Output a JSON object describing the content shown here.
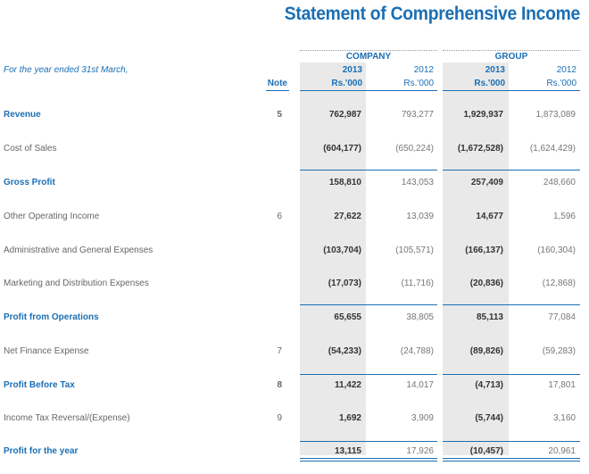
{
  "title": "Statement of Comprehensive Income",
  "period_label": "For the year ended 31st March,",
  "header": {
    "note": "Note",
    "company": "COMPANY",
    "group": "GROUP",
    "year_cur": "2013",
    "year_prev": "2012",
    "unit": "Rs.'000"
  },
  "rows": [
    {
      "label": "Revenue",
      "note": "5",
      "c2013": "762,987",
      "c2012": "793,277",
      "g2013": "1,929,937",
      "g2012": "1,873,089"
    },
    {
      "label": "Cost of Sales",
      "note": "",
      "c2013": "(604,177)",
      "c2012": "(650,224)",
      "g2013": "(1,672,528)",
      "g2012": "(1,624,429)"
    },
    {
      "label": "Gross Profit",
      "note": "",
      "c2013": "158,810",
      "c2012": "143,053",
      "g2013": "257,409",
      "g2012": "248,660"
    },
    {
      "label": "Other Operating Income",
      "note": "6",
      "c2013": "27,622",
      "c2012": "13,039",
      "g2013": "14,677",
      "g2012": "1,596"
    },
    {
      "label": "Administrative and General Expenses",
      "note": "",
      "c2013": "(103,704)",
      "c2012": "(105,571)",
      "g2013": "(166,137)",
      "g2012": "(160,304)"
    },
    {
      "label": "Marketing and Distribution Expenses",
      "note": "",
      "c2013": "(17,073)",
      "c2012": "(11,716)",
      "g2013": "(20,836)",
      "g2012": "(12,868)"
    },
    {
      "label": "Profit from Operations",
      "note": "",
      "c2013": "65,655",
      "c2012": "38,805",
      "g2013": "85,113",
      "g2012": "77,084"
    },
    {
      "label": "Net Finance Expense",
      "note": "7",
      "c2013": "(54,233)",
      "c2012": "(24,788)",
      "g2013": "(89,826)",
      "g2012": "(59,283)"
    },
    {
      "label": "Profit Before Tax",
      "note": "8",
      "c2013": "11,422",
      "c2012": "14,017",
      "g2013": "(4,713)",
      "g2012": "17,801"
    },
    {
      "label": "Income Tax Reversal/(Expense)",
      "note": "9",
      "c2013": "1,692",
      "c2012": "3,909",
      "g2013": "(5,744)",
      "g2012": "3,160"
    },
    {
      "label": "Profit for the year",
      "note": "",
      "c2013": "13,115",
      "c2012": "17,926",
      "g2013": "(10,457)",
      "g2012": "20,961"
    }
  ]
}
